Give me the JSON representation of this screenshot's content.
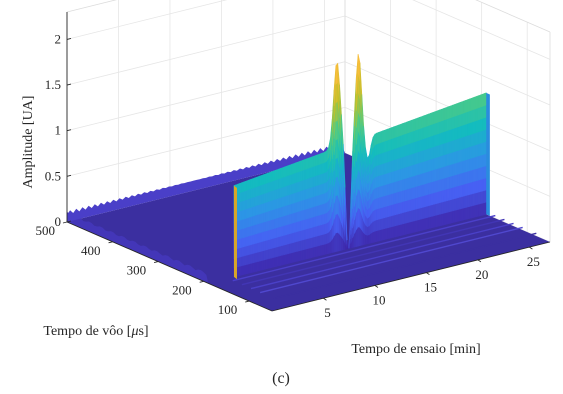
{
  "chart_data": {
    "type": "surface",
    "panel_label": "(c)",
    "zlabel": "Amplitude [UA]",
    "xlabel": "Tempo de ensaio [min]",
    "ylabel_prefix": "Tempo de vôo [",
    "ylabel_mu": "μ",
    "ylabel_suffix": "s]",
    "xlim": [
      0,
      27
    ],
    "ylim": [
      50,
      500
    ],
    "zlim": [
      0,
      2.3
    ],
    "x_ticks": [
      5,
      10,
      15,
      20,
      25
    ],
    "y_ticks": [
      100,
      200,
      300,
      400,
      500
    ],
    "z_ticks": [
      0,
      0.5,
      1,
      1.5,
      2
    ],
    "z_tick_labels": [
      "0",
      "0.5",
      "1",
      "1.5",
      "2"
    ],
    "grid": true,
    "colormap": "parula",
    "colormap_stops": [
      "#3e26a8",
      "#4760f3",
      "#2d95e6",
      "#13bcbf",
      "#4ecb84",
      "#c1c02a",
      "#fdbd3c",
      "#f9fb15"
    ],
    "signal": {
      "front_edge_x": 2.5,
      "front_edge_amplitude": 1.0,
      "back_edge_x": 27,
      "back_edge_amplitude": 1.33,
      "rise_y_approx": 190,
      "baseline_amplitude": 0.08,
      "features": [
        {
          "x": 12.5,
          "amplitude": 2.1,
          "kind": "peak"
        },
        {
          "x": 13.6,
          "amplitude": 0.0,
          "kind": "trough"
        },
        {
          "x": 14.6,
          "amplitude": 2.15,
          "kind": "peak"
        }
      ]
    }
  }
}
